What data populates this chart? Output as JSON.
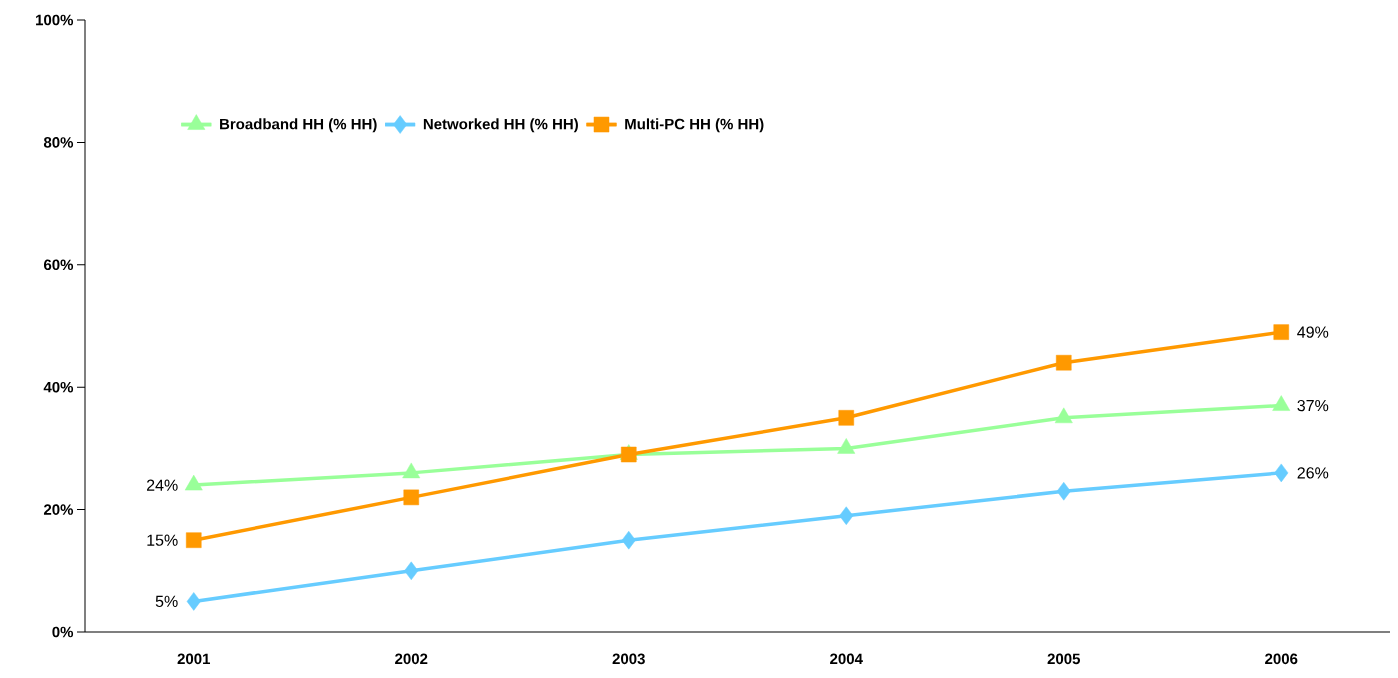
{
  "chart_data": {
    "type": "line",
    "categories": [
      "2001",
      "2002",
      "2003",
      "2004",
      "2005",
      "2006"
    ],
    "ylim": [
      0,
      100
    ],
    "yticks": [
      {
        "value": 0,
        "label": "0%"
      },
      {
        "value": 20,
        "label": "20%"
      },
      {
        "value": 40,
        "label": "40%"
      },
      {
        "value": 60,
        "label": "60%"
      },
      {
        "value": 80,
        "label": "80%"
      },
      {
        "value": 100,
        "label": "100%"
      }
    ],
    "grid": false,
    "legend": "top left",
    "line_style": "solid",
    "series": [
      {
        "name": "Broadband HH (% HH)",
        "color": "#99ff99",
        "marker": "triangle",
        "values": [
          24,
          26,
          29,
          30,
          35,
          37
        ],
        "value_labels": [
          "24%",
          null,
          null,
          null,
          null,
          "37%"
        ]
      },
      {
        "name": "Networked HH (% HH)",
        "color": "#66ccff",
        "marker": "diamond",
        "values": [
          5,
          10,
          15,
          19,
          23,
          26
        ],
        "value_labels": [
          "5%",
          null,
          null,
          null,
          null,
          "26%"
        ]
      },
      {
        "name": "Multi-PC HH (% HH)",
        "color": "#ff9900",
        "marker": "square",
        "values": [
          15,
          22,
          29,
          35,
          44,
          49
        ],
        "value_labels": [
          "15%",
          null,
          null,
          null,
          null,
          "49%"
        ]
      }
    ]
  }
}
